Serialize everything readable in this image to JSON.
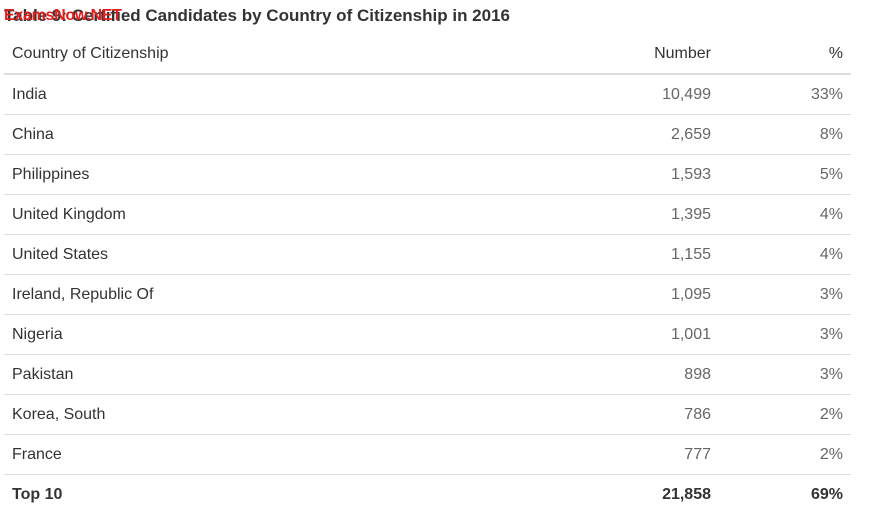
{
  "title": "Table 9: Certified Candidates by Country of Citizenship in 2016",
  "watermark": "ExamsNow.NET",
  "table": {
    "headers": {
      "country": "Country of Citizenship",
      "number": "Number",
      "percent": "%"
    },
    "rows": [
      {
        "country": "India",
        "number": "10,499",
        "percent": "33%"
      },
      {
        "country": "China",
        "number": "2,659",
        "percent": "8%"
      },
      {
        "country": "Philippines",
        "number": "1,593",
        "percent": "5%"
      },
      {
        "country": "United Kingdom",
        "number": "1,395",
        "percent": "4%"
      },
      {
        "country": "United States",
        "number": "1,155",
        "percent": "4%"
      },
      {
        "country": "Ireland, Republic Of",
        "number": "1,095",
        "percent": "3%"
      },
      {
        "country": "Nigeria",
        "number": "1,001",
        "percent": "3%"
      },
      {
        "country": "Pakistan",
        "number": "898",
        "percent": "3%"
      },
      {
        "country": "Korea, South",
        "number": "786",
        "percent": "2%"
      },
      {
        "country": "France",
        "number": "777",
        "percent": "2%"
      }
    ],
    "total": {
      "country": "Top 10",
      "number": "21,858",
      "percent": "69%"
    }
  }
}
